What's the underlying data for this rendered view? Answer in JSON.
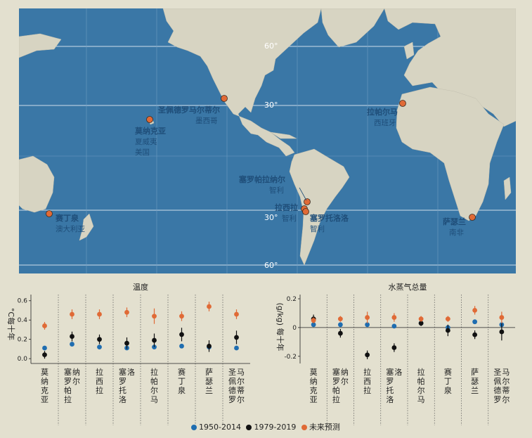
{
  "map": {
    "colors": {
      "ocean": "#3a77a6",
      "land": "#d7d4c2",
      "marker": "#e06a36"
    },
    "lat_labels": [
      "60°",
      "30°",
      "30°",
      "60°"
    ],
    "sites": [
      {
        "name": "赛丁泉",
        "sub": [
          "澳大利亚"
        ]
      },
      {
        "name": "莫纳克亚",
        "sub": [
          "夏威夷",
          "美国"
        ]
      },
      {
        "name": "圣佩德罗马尔蒂尔",
        "sub": [
          "墨西哥"
        ]
      },
      {
        "name": "塞罗帕拉纳尔",
        "sub": [
          "智利"
        ]
      },
      {
        "name": "拉西拉",
        "sub": [
          "智利"
        ]
      },
      {
        "name": "塞罗托洛洛",
        "sub": [
          "智利"
        ]
      },
      {
        "name": "拉帕尔马",
        "sub": [
          "西班牙"
        ]
      },
      {
        "name": "萨瑟兰",
        "sub": [
          "南非"
        ]
      }
    ]
  },
  "chart_data": [
    {
      "type": "scatter",
      "title": "温度",
      "ylabel": "°C每十年",
      "ylim": [
        -0.05,
        0.62
      ],
      "yticks": [
        0.0,
        0.2,
        0.4,
        0.6
      ],
      "yticklabels": [
        "0.0",
        "0.2",
        "0.4",
        "0.6"
      ],
      "categories": [
        "莫纳克亚",
        "塞罗帕拉纳尔",
        "拉西拉",
        "塞罗托洛洛",
        "拉帕尔马",
        "赛丁泉",
        "萨瑟兰",
        "圣佩德罗马尔蒂尔"
      ],
      "series": [
        {
          "name": "1950-2014",
          "color": "#1f6db0",
          "values": [
            0.11,
            0.15,
            0.12,
            0.11,
            0.12,
            0.13,
            0.12,
            0.11
          ],
          "err": [
            0,
            0,
            0,
            0,
            0,
            0,
            0,
            0
          ]
        },
        {
          "name": "1979-2019",
          "color": "#111111",
          "values": [
            0.04,
            0.23,
            0.2,
            0.16,
            0.19,
            0.25,
            0.13,
            0.22
          ],
          "err": [
            0.04,
            0.05,
            0.05,
            0.06,
            0.07,
            0.07,
            0.06,
            0.07
          ]
        },
        {
          "name": "未来预测",
          "color": "#e06a36",
          "values": [
            0.34,
            0.46,
            0.46,
            0.48,
            0.44,
            0.44,
            0.54,
            0.46
          ],
          "err": [
            0.04,
            0.05,
            0.05,
            0.05,
            0.08,
            0.05,
            0.05,
            0.05
          ]
        }
      ]
    },
    {
      "type": "scatter",
      "title": "水蒸气总量",
      "ylabel": "(g/kg) 每十年",
      "ylim": [
        -0.25,
        0.2
      ],
      "yticks": [
        -0.2,
        0.0,
        0.2
      ],
      "yticklabels": [
        "-0.2",
        "0",
        "0.2"
      ],
      "categories": [
        "莫纳克亚",
        "塞罗帕拉纳尔",
        "拉西拉",
        "塞罗托洛洛",
        "拉帕尔马",
        "赛丁泉",
        "萨瑟兰",
        "圣佩德罗马尔蒂尔"
      ],
      "series": [
        {
          "name": "1950-2014",
          "color": "#1f6db0",
          "values": [
            0.02,
            0.02,
            0.02,
            0.01,
            0.03,
            0.0,
            0.04,
            0.02
          ],
          "err": [
            0,
            0,
            0,
            0,
            0,
            0,
            0,
            0
          ]
        },
        {
          "name": "1979-2019",
          "color": "#111111",
          "values": [
            0.06,
            -0.04,
            -0.19,
            -0.14,
            0.03,
            -0.02,
            -0.05,
            -0.03
          ],
          "err": [
            0.03,
            0.03,
            0.03,
            0.03,
            0.02,
            0.04,
            0.03,
            0.06
          ]
        },
        {
          "name": "未来预测",
          "color": "#e06a36",
          "values": [
            0.05,
            0.06,
            0.07,
            0.07,
            0.06,
            0.06,
            0.12,
            0.07
          ],
          "err": [
            0.02,
            0.02,
            0.04,
            0.03,
            0.02,
            0.02,
            0.03,
            0.04
          ]
        }
      ]
    }
  ],
  "legend": [
    {
      "label": "1950-2014",
      "color": "#1f6db0"
    },
    {
      "label": "1979-2019",
      "color": "#111111"
    },
    {
      "label": "未来预测",
      "color": "#e06a36"
    }
  ]
}
